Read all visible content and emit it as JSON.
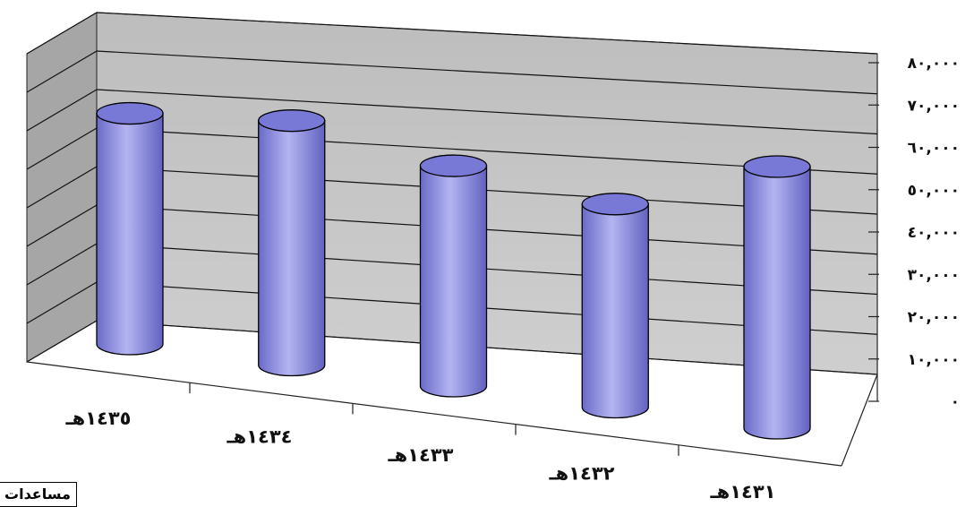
{
  "chart_data": {
    "type": "bar",
    "style": "3d-cylinder",
    "categories": [
      "١٤٣٥هـ",
      "١٤٣٤هـ",
      "١٤٣٣هـ",
      "١٤٣٢هـ",
      "١٤٣١هـ"
    ],
    "values": [
      67000,
      71000,
      64000,
      59000,
      76000
    ],
    "ylim": [
      0,
      80000
    ],
    "y_tick_labels": [
      "٠",
      "١٠,٠٠٠",
      "٢٠,٠٠٠",
      "٣٠,٠٠٠",
      "٤٠,٠٠٠",
      "٥٠,٠٠٠",
      "٦٠,٠٠٠",
      "٧٠,٠٠٠",
      "٨٠,٠٠٠"
    ],
    "y_axis_side": "right",
    "grid": true,
    "colors": {
      "bar": "#8c8ce0",
      "bar_top": "#7878d6",
      "wall": "#c0c0c0",
      "side_wall": "#a6a6a6"
    }
  },
  "legend": {
    "label": "مساعدات"
  }
}
